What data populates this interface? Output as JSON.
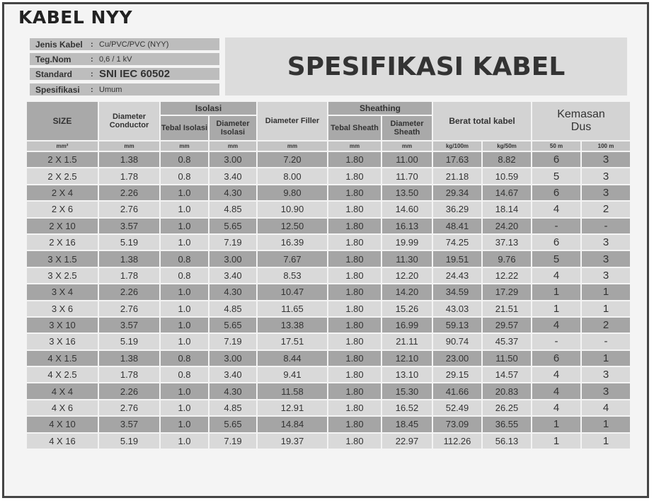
{
  "title": "KABEL NYY",
  "banner": "SPESIFIKASI KABEL",
  "info": [
    {
      "key": "Jenis Kabel",
      "value": "Cu/PVC/PVC (NYY)"
    },
    {
      "key": "Teg.Nom",
      "value": "0,6 / 1 kV"
    },
    {
      "key": "Standard",
      "value": "SNI IEC 60502"
    },
    {
      "key": "Spesifikasi",
      "value": "Umum"
    }
  ],
  "headers": {
    "size": "SIZE",
    "diameter_conductor": "Diameter Conductor",
    "isolasi": "Isolasi",
    "tebal_isolasi": "Tebal Isolasi",
    "diameter_isolasi": "Diameter Isolasi",
    "diameter_filler": "Diameter Filler",
    "sheathing": "Sheathing",
    "tebal_sheath": "Tebal Sheath",
    "diameter_sheath": "Diameter Sheath",
    "berat": "Berat total kabel",
    "kemasan": "Kemasan Dus"
  },
  "units": [
    "mm²",
    "mm",
    "mm",
    "mm",
    "mm",
    "mm",
    "mm",
    "kg/100m",
    "kg/50m",
    "50 m",
    "100 m"
  ],
  "rows": [
    [
      "2 X 1.5",
      "1.38",
      "0.8",
      "3.00",
      "7.20",
      "1.80",
      "11.00",
      "17.63",
      "8.82",
      "6",
      "3"
    ],
    [
      "2 X 2.5",
      "1.78",
      "0.8",
      "3.40",
      "8.00",
      "1.80",
      "11.70",
      "21.18",
      "10.59",
      "5",
      "3"
    ],
    [
      "2 X 4",
      "2.26",
      "1.0",
      "4.30",
      "9.80",
      "1.80",
      "13.50",
      "29.34",
      "14.67",
      "6",
      "3"
    ],
    [
      "2 X 6",
      "2.76",
      "1.0",
      "4.85",
      "10.90",
      "1.80",
      "14.60",
      "36.29",
      "18.14",
      "4",
      "2"
    ],
    [
      "2 X 10",
      "3.57",
      "1.0",
      "5.65",
      "12.50",
      "1.80",
      "16.13",
      "48.41",
      "24.20",
      "-",
      "-"
    ],
    [
      "2 X 16",
      "5.19",
      "1.0",
      "7.19",
      "16.39",
      "1.80",
      "19.99",
      "74.25",
      "37.13",
      "6",
      "3"
    ],
    [
      "3 X 1.5",
      "1.38",
      "0.8",
      "3.00",
      "7.67",
      "1.80",
      "11.30",
      "19.51",
      "9.76",
      "5",
      "3"
    ],
    [
      "3 X 2.5",
      "1.78",
      "0.8",
      "3.40",
      "8.53",
      "1.80",
      "12.20",
      "24.43",
      "12.22",
      "4",
      "3"
    ],
    [
      "3 X 4",
      "2.26",
      "1.0",
      "4.30",
      "10.47",
      "1.80",
      "14.20",
      "34.59",
      "17.29",
      "1",
      "1"
    ],
    [
      "3 X 6",
      "2.76",
      "1.0",
      "4.85",
      "11.65",
      "1.80",
      "15.26",
      "43.03",
      "21.51",
      "1",
      "1"
    ],
    [
      "3 X  10",
      "3.57",
      "1.0",
      "5.65",
      "13.38",
      "1.80",
      "16.99",
      "59.13",
      "29.57",
      "4",
      "2"
    ],
    [
      "3 X 16",
      "5.19",
      "1.0",
      "7.19",
      "17.51",
      "1.80",
      "21.11",
      "90.74",
      "45.37",
      "-",
      "-"
    ],
    [
      "4 X 1.5",
      "1.38",
      "0.8",
      "3.00",
      "8.44",
      "1.80",
      "12.10",
      "23.00",
      "11.50",
      "6",
      "1"
    ],
    [
      "4 X 2.5",
      "1.78",
      "0.8",
      "3.40",
      "9.41",
      "1.80",
      "13.10",
      "29.15",
      "14.57",
      "4",
      "3"
    ],
    [
      "4 X 4",
      "2.26",
      "1.0",
      "4.30",
      "11.58",
      "1.80",
      "15.30",
      "41.66",
      "20.83",
      "4",
      "3"
    ],
    [
      "4 X 6",
      "2.76",
      "1.0",
      "4.85",
      "12.91",
      "1.80",
      "16.52",
      "52.49",
      "26.25",
      "4",
      "4"
    ],
    [
      "4 X 10",
      "3.57",
      "1.0",
      "5.65",
      "14.84",
      "1.80",
      "18.45",
      "73.09",
      "36.55",
      "1",
      "1"
    ],
    [
      "4 X 16",
      "5.19",
      "1.0",
      "7.19",
      "19.37",
      "1.80",
      "22.97",
      "112.26",
      "56.13",
      "1",
      "1"
    ]
  ]
}
